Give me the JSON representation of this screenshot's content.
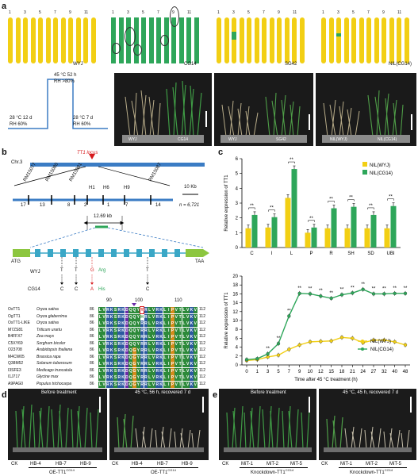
{
  "colors": {
    "wyj": "#f2cf14",
    "cg14": "#2ea65a",
    "blue": "#3b7cc4",
    "greenbox": "#8cc63f",
    "exon": "#3aa7c6",
    "red": "#d7191c"
  },
  "panel_a": {
    "label": "a",
    "chrom_numbers": [
      "1",
      "3",
      "5",
      "7",
      "9",
      "11"
    ],
    "genotypes": [
      "WYJ",
      "CG14",
      "SG42",
      "NIL(CG14)"
    ],
    "protocol": {
      "heat": "45 °C 52 h",
      "heat_rh": "RH >80%",
      "pre": "28 °C 12 d",
      "pre_rh": "RH 60%",
      "post": "28 °C 7 d",
      "post_rh": "RH 60%"
    },
    "photo_labels": [
      "WYJ",
      "CG14",
      "WYJ",
      "SG42",
      "NIL(WYJ)",
      "NIL(CG14)"
    ]
  },
  "panel_b": {
    "label": "b",
    "chr": "Chr.3",
    "locus": "TT1 locus",
    "markers": [
      "RM15077",
      "RM15080",
      "RM15081",
      "H1",
      "H6",
      "H9",
      "RM15087"
    ],
    "recombinants": [
      "17",
      "13",
      "8",
      "2",
      "1",
      "7",
      "14"
    ],
    "n_label": "n = 6,721",
    "scale": "10 Kb",
    "interval": "12.69 kb",
    "atg": "ATG",
    "taa": "TAA",
    "wyj": "WYJ",
    "cg14": "CG14",
    "snps_wyj": [
      "T",
      "T",
      "G",
      "T"
    ],
    "snps_cg14": [
      "C",
      "C",
      "A",
      "C"
    ],
    "arg": "Arg",
    "his": "His",
    "positions": [
      "90",
      "100",
      "110"
    ],
    "alignment": [
      {
        "id": "OsTT1",
        "species": "Oryza sativa",
        "start": "86",
        "end": "112",
        "seq": "LVRKSRKDQQYYRLVRKLIPVTLVKV"
      },
      {
        "id": "OgTT1",
        "species": "Oryza glaberrima",
        "start": "86",
        "end": "112",
        "seq": "LVRKSRKDQQYHRLVRKLIPVTLVKV"
      },
      {
        "id": "OsTT1-LIKE",
        "species": "Oryza sativa",
        "start": "86",
        "end": "112",
        "seq": "LVRKSRKDQQYRRLVRKLIPVTLVKV"
      },
      {
        "id": "M7ZS81",
        "species": "Triticum urartu",
        "start": "86",
        "end": "112",
        "seq": "LVRKSRKDQQYRRLVRKLIPVTLVKV"
      },
      {
        "id": "B4FFX7",
        "species": "Zea mays",
        "start": "86",
        "end": "112",
        "seq": "LVRKSRKDQQYRRLVRKLIPVTLVKV"
      },
      {
        "id": "C5XY69",
        "species": "Sorghum bicolor",
        "start": "86",
        "end": "112",
        "seq": "LVRKSRKDQQYRRLVRKLIPVTLVKV"
      },
      {
        "id": "O23708",
        "species": "Arabidopsis thaliana",
        "start": "86",
        "end": "112",
        "seq": "LVRKSRKDQGYRRLVRKLIPVTLVKV"
      },
      {
        "id": "M4CW05",
        "species": "Brassica rapa",
        "start": "86",
        "end": "112",
        "seq": "LVRKSRKDQGYRRLVRKLIPVTLVKV"
      },
      {
        "id": "Q38M52",
        "species": "Solanum tuberosum",
        "start": "86",
        "end": "112",
        "seq": "LVRKSRKDQGYRRLVRKLIPVTLVKV"
      },
      {
        "id": "I3SFE3",
        "species": "Medicago truncatula",
        "start": "86",
        "end": "112",
        "seq": "LVRKSRKDQGYRRLVRKLIPVTLVKV"
      },
      {
        "id": "I1J717",
        "species": "Glycine max",
        "start": "86",
        "end": "112",
        "seq": "LVRKSRKDQGYRRLVRKLIPVTLVKV"
      },
      {
        "id": "A9PAG0",
        "species": "Populus trichocarpa",
        "start": "86",
        "end": "112",
        "seq": "LVRKSRKDQGYRRLVRKLIPVTLVKV"
      }
    ]
  },
  "panel_c": {
    "label": "c"
  },
  "chart_data": [
    {
      "type": "bar",
      "ylabel": "Relative expression of TT1",
      "categories": [
        "C",
        "I",
        "L",
        "P",
        "R",
        "SH",
        "SD",
        "UBI"
      ],
      "ylim": [
        0,
        6
      ],
      "yticks": [
        "0",
        "1",
        "2",
        "3",
        "4",
        "5",
        "6"
      ],
      "significance": [
        "**",
        "**",
        "**",
        "**",
        "**",
        "**",
        "**",
        "**"
      ],
      "series": [
        {
          "name": "NIL(WYJ)",
          "values": [
            1.3,
            1.35,
            3.35,
            1.0,
            1.3,
            1.3,
            1.3,
            1.3
          ]
        },
        {
          "name": "NIL(CG14)",
          "values": [
            2.2,
            2.05,
            5.3,
            1.35,
            2.65,
            2.75,
            2.2,
            2.8
          ]
        }
      ]
    },
    {
      "type": "line",
      "xlabel": "Time after 45 °C treatment (h)",
      "ylabel": "Relative expression of TT1",
      "x": [
        0,
        1,
        3,
        5,
        7,
        9,
        10,
        12,
        15,
        18,
        21,
        24,
        27,
        32,
        40,
        48
      ],
      "ylim": [
        0,
        20
      ],
      "yticks": [
        "0",
        "2",
        "4",
        "6",
        "8",
        "10",
        "12",
        "14",
        "16",
        "18",
        "20"
      ],
      "significance_x": [
        3,
        5,
        7,
        9,
        10,
        12,
        15,
        18,
        21,
        24,
        27,
        32,
        40,
        48
      ],
      "series": [
        {
          "name": "NIL(WYJ)",
          "values": [
            1.0,
            1.2,
            1.8,
            2.2,
            3.5,
            4.5,
            5.2,
            5.3,
            5.4,
            6.2,
            6.0,
            5.0,
            5.6,
            5.6,
            5.2,
            4.5
          ]
        },
        {
          "name": "NIL(CG14)",
          "values": [
            1.2,
            1.4,
            2.5,
            4.8,
            11.0,
            16.1,
            16.0,
            15.5,
            15.0,
            15.8,
            16.2,
            17.0,
            16.0,
            16.0,
            16.1,
            16.1
          ]
        }
      ]
    }
  ],
  "panel_d": {
    "label": "d",
    "before": "Before treatment",
    "after": "45 °C, 56 h, recovered 7 d",
    "lines": [
      "CK",
      "HB-4",
      "HB-7",
      "HB-9"
    ],
    "group": "OE-TT1",
    "group_sup": "CG14"
  },
  "panel_e": {
    "label": "e",
    "before": "Before treatment",
    "after": "45 °C, 45 h, recovered 7 d",
    "lines": [
      "CK",
      "MiT-1",
      "MiT-2",
      "MiT-5"
    ],
    "group": "Knockdown-TT1",
    "group_sup": "CG14"
  }
}
